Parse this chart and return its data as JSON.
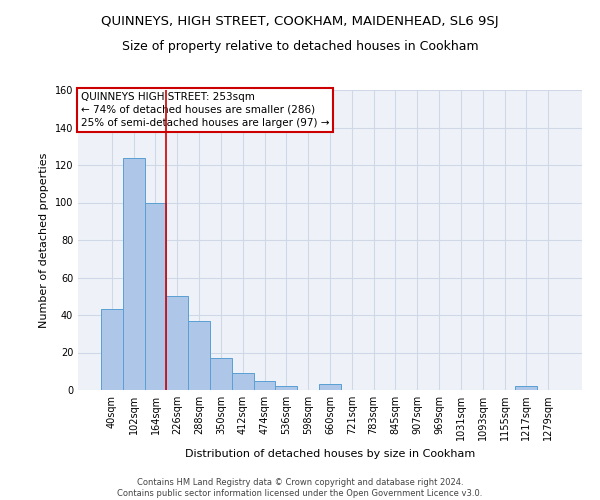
{
  "title": "QUINNEYS, HIGH STREET, COOKHAM, MAIDENHEAD, SL6 9SJ",
  "subtitle": "Size of property relative to detached houses in Cookham",
  "xlabel": "Distribution of detached houses by size in Cookham",
  "ylabel": "Number of detached properties",
  "footer_line1": "Contains HM Land Registry data © Crown copyright and database right 2024.",
  "footer_line2": "Contains public sector information licensed under the Open Government Licence v3.0.",
  "bar_labels": [
    "40sqm",
    "102sqm",
    "164sqm",
    "226sqm",
    "288sqm",
    "350sqm",
    "412sqm",
    "474sqm",
    "536sqm",
    "598sqm",
    "660sqm",
    "721sqm",
    "783sqm",
    "845sqm",
    "907sqm",
    "969sqm",
    "1031sqm",
    "1093sqm",
    "1155sqm",
    "1217sqm",
    "1279sqm"
  ],
  "bar_values": [
    43,
    124,
    100,
    50,
    37,
    17,
    9,
    5,
    2,
    0,
    3,
    0,
    0,
    0,
    0,
    0,
    0,
    0,
    0,
    2,
    0
  ],
  "bar_color": "#aec6e8",
  "bar_edge_color": "#5a9fd4",
  "annotation_line1": "QUINNEYS HIGH STREET: 253sqm",
  "annotation_line2": "← 74% of detached houses are smaller (286)",
  "annotation_line3": "25% of semi-detached houses are larger (97) →",
  "annotation_box_color": "#cc0000",
  "vline_x": 2.5,
  "vline_color": "#cc0000",
  "ylim": [
    0,
    160
  ],
  "yticks": [
    0,
    20,
    40,
    60,
    80,
    100,
    120,
    140,
    160
  ],
  "grid_color": "#d0d8e8",
  "bg_color": "#eef2f8",
  "title_fontsize": 9.5,
  "subtitle_fontsize": 9,
  "xlabel_fontsize": 8,
  "ylabel_fontsize": 8,
  "tick_fontsize": 7,
  "annotation_fontsize": 7.5,
  "footer_fontsize": 6
}
